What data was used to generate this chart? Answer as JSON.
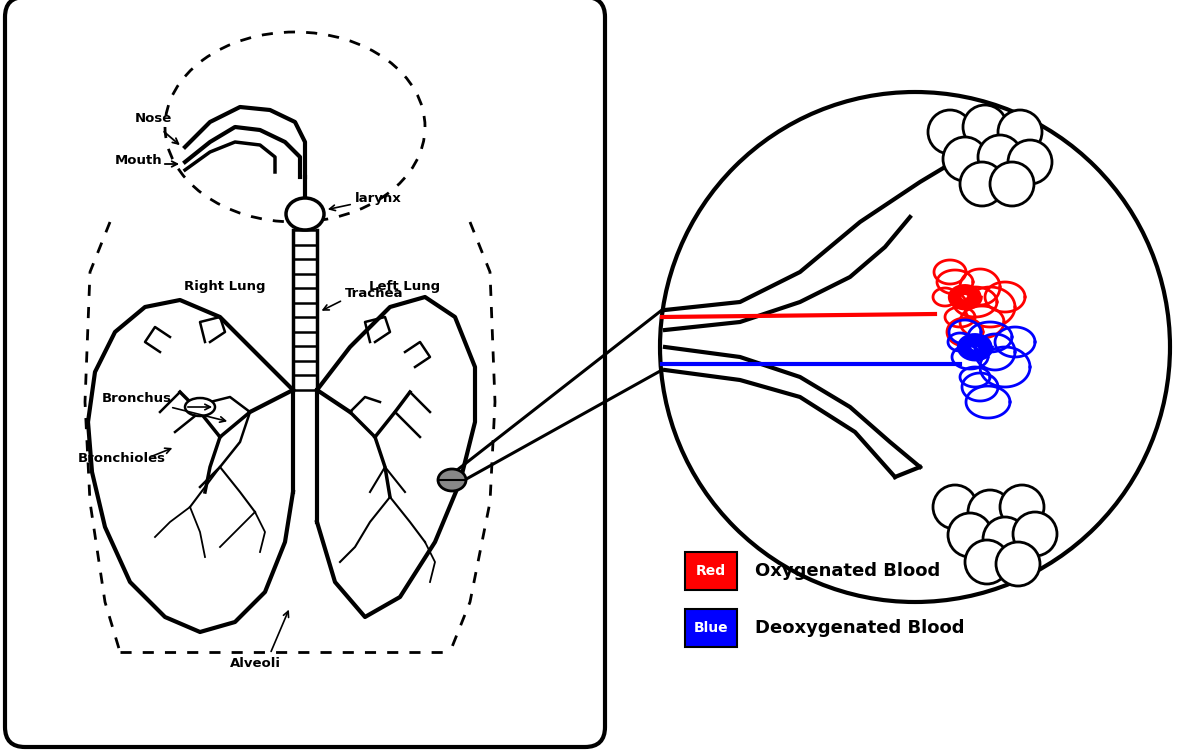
{
  "bg_color": "#ffffff",
  "line_color": "#000000",
  "red_color": "#ff0000",
  "blue_color": "#0000ff",
  "gray_color": "#888888",
  "legend_red_label": "Red",
  "legend_red_desc": "Oxygenated Blood",
  "legend_blue_label": "Blue",
  "legend_blue_desc": "Deoxygenated Blood",
  "figsize": [
    12.0,
    7.52
  ],
  "dpi": 100,
  "labels": {
    "nose": "Nose",
    "mouth": "Mouth",
    "larynx": "larynx",
    "trachea": "Trachea",
    "right_lung": "Right Lung",
    "left_lung": "Left Lung",
    "bronchus": "Bronchus",
    "bronchioles": "Bronchioles",
    "alveoli": "Alveoli"
  }
}
